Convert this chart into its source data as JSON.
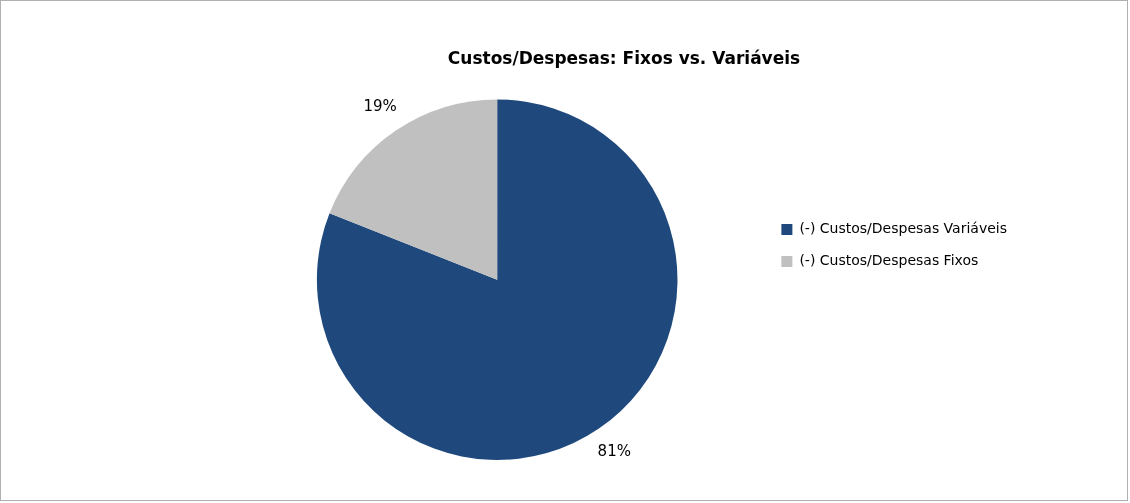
{
  "chart_data": {
    "type": "pie",
    "title": "Custos/Despesas: Fixos vs. Variáveis",
    "categories": [
      "(-) Custos/Despesas Variáveis",
      "(-) Custos/Despesas Fixos"
    ],
    "values": [
      81,
      19
    ],
    "colors": [
      "#1f497d",
      "#c0c0c0"
    ],
    "value_labels": [
      "81%",
      "19%"
    ],
    "legend": "right"
  }
}
